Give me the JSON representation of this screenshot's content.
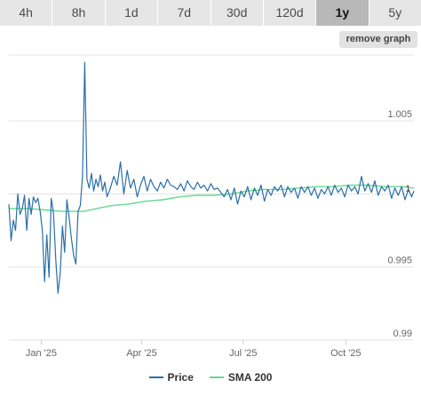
{
  "tabs": [
    {
      "label": "4h",
      "active": false
    },
    {
      "label": "8h",
      "active": false
    },
    {
      "label": "1d",
      "active": false
    },
    {
      "label": "7d",
      "active": false
    },
    {
      "label": "30d",
      "active": false
    },
    {
      "label": "120d",
      "active": false
    },
    {
      "label": "1y",
      "active": true
    },
    {
      "label": "5y",
      "active": false
    }
  ],
  "remove_graph_label": "remove graph",
  "colors": {
    "price": "#2a6fa8",
    "sma": "#66d98e",
    "grid": "#e3e3e3",
    "active_tab": "#b8b8b8",
    "tab": "#e6e6e6"
  },
  "chart_data": {
    "type": "line",
    "title": "",
    "xlabel": "",
    "ylabel": "",
    "x_ticks": [
      "Jan '25",
      "Apr '25",
      "Jul '25",
      "Oct '25"
    ],
    "y_ticks": [
      "0.99",
      "0.995",
      "1.005"
    ],
    "ylim": [
      0.99,
      1.0095
    ],
    "grid": true,
    "y_axis_side": "right",
    "legend_position": "bottom-center",
    "last_value_label": "1",
    "series": [
      {
        "name": "Price",
        "color": "#2a6fa8",
        "x": [
          "2024-12-03",
          "2024-12-05",
          "2024-12-07",
          "2024-12-09",
          "2024-12-11",
          "2024-12-13",
          "2024-12-15",
          "2024-12-17",
          "2024-12-19",
          "2024-12-21",
          "2024-12-23",
          "2024-12-25",
          "2024-12-27",
          "2024-12-29",
          "2024-12-31",
          "2025-01-02",
          "2025-01-04",
          "2025-01-06",
          "2025-01-08",
          "2025-01-10",
          "2025-01-12",
          "2025-01-14",
          "2025-01-16",
          "2025-01-18",
          "2025-01-20",
          "2025-01-22",
          "2025-01-24",
          "2025-01-26",
          "2025-01-28",
          "2025-01-30",
          "2025-02-01",
          "2025-02-03",
          "2025-02-05",
          "2025-02-07",
          "2025-02-09",
          "2025-02-11",
          "2025-02-13",
          "2025-02-15",
          "2025-02-17",
          "2025-02-19",
          "2025-02-21",
          "2025-02-23",
          "2025-02-25",
          "2025-02-27",
          "2025-03-01",
          "2025-03-04",
          "2025-03-07",
          "2025-03-10",
          "2025-03-13",
          "2025-03-16",
          "2025-03-19",
          "2025-03-22",
          "2025-03-25",
          "2025-03-28",
          "2025-03-31",
          "2025-04-03",
          "2025-04-06",
          "2025-04-09",
          "2025-04-12",
          "2025-04-15",
          "2025-04-18",
          "2025-04-21",
          "2025-04-24",
          "2025-04-27",
          "2025-04-30",
          "2025-05-03",
          "2025-05-06",
          "2025-05-09",
          "2025-05-12",
          "2025-05-15",
          "2025-05-18",
          "2025-05-21",
          "2025-05-24",
          "2025-05-27",
          "2025-05-30",
          "2025-06-02",
          "2025-06-05",
          "2025-06-08",
          "2025-06-11",
          "2025-06-14",
          "2025-06-17",
          "2025-06-20",
          "2025-06-23",
          "2025-06-26",
          "2025-06-29",
          "2025-07-02",
          "2025-07-05",
          "2025-07-08",
          "2025-07-11",
          "2025-07-14",
          "2025-07-17",
          "2025-07-20",
          "2025-07-23",
          "2025-07-26",
          "2025-07-29",
          "2025-08-01",
          "2025-08-04",
          "2025-08-07",
          "2025-08-10",
          "2025-08-13",
          "2025-08-16",
          "2025-08-19",
          "2025-08-22",
          "2025-08-25",
          "2025-08-28",
          "2025-08-31",
          "2025-09-03",
          "2025-09-06",
          "2025-09-09",
          "2025-09-12",
          "2025-09-15",
          "2025-09-18",
          "2025-09-21",
          "2025-09-24",
          "2025-09-27",
          "2025-09-30",
          "2025-10-03",
          "2025-10-06",
          "2025-10-09",
          "2025-10-12",
          "2025-10-15",
          "2025-10-18",
          "2025-10-21",
          "2025-10-24",
          "2025-10-27",
          "2025-10-30",
          "2025-11-02",
          "2025-11-05",
          "2025-11-08",
          "2025-11-11",
          "2025-11-14",
          "2025-11-17",
          "2025-11-20",
          "2025-11-23",
          "2025-11-26",
          "2025-11-29",
          "2025-12-01"
        ],
        "values": [
          0.9993,
          0.9968,
          0.9982,
          0.9975,
          1.0,
          0.9986,
          0.999,
          0.9999,
          0.9975,
          0.9997,
          0.9986,
          0.9998,
          0.9994,
          0.9997,
          0.9988,
          0.9975,
          0.994,
          0.9972,
          0.9943,
          0.9997,
          0.9987,
          0.9955,
          0.9932,
          0.9946,
          0.9978,
          0.996,
          0.9996,
          0.9984,
          0.997,
          0.9958,
          0.9952,
          0.9988,
          0.9992,
          1.0012,
          1.009,
          1.001,
          1.0004,
          1.0014,
          1.0002,
          1.001,
          1.0005,
          1.0013,
          1.0002,
          1.0008,
          0.9998,
          1.0004,
          1.0012,
          1.0006,
          1.0022,
          1.0,
          1.0016,
          1.0004,
          1.001,
          0.9998,
          1.0006,
          1.0012,
          1.0002,
          1.001,
          1.0005,
          1.0002,
          1.0008,
          1.0004,
          1.001,
          1.0006,
          1.0005,
          1.0003,
          1.0007,
          1.0002,
          1.0009,
          1.0005,
          1.0003,
          1.0008,
          1.0004,
          1.0006,
          1.0002,
          1.0007,
          1.0003,
          1.0004,
          1.0001,
          0.9998,
          1.0003,
          0.9996,
          1.0004,
          0.9993,
          1.0002,
          0.9998,
          1.0005,
          0.9996,
          1.0004,
          0.9999,
          1.0006,
          0.9995,
          1.0003,
          0.9999,
          1.0005,
          1.0002,
          1.0006,
          0.9998,
          1.0005,
          1.0001,
          1.0004,
          0.9997,
          1.0005,
          1.0001,
          1.0005,
          0.9999,
          1.0004,
          0.9997,
          1.0003,
          1.0,
          1.0005,
          0.9999,
          1.0006,
          1.0001,
          1.0004,
          0.9998,
          1.0006,
          1.0002,
          1.0005,
          1.0,
          1.0012,
          1.0002,
          1.0007,
          1.0001,
          1.0009,
          0.9999,
          1.0005,
          1.0002,
          1.0006,
          0.9997,
          1.0004,
          0.9999,
          1.0005,
          0.9996,
          1.0003,
          0.9998,
          1.0002
        ]
      },
      {
        "name": "SMA 200",
        "color": "#66d98e",
        "x": [
          "2024-12-03",
          "2024-12-20",
          "2025-01-05",
          "2025-01-20",
          "2025-02-08",
          "2025-02-20",
          "2025-03-05",
          "2025-03-20",
          "2025-04-05",
          "2025-04-20",
          "2025-05-05",
          "2025-05-20",
          "2025-06-05",
          "2025-06-20",
          "2025-07-05",
          "2025-07-20",
          "2025-08-05",
          "2025-08-20",
          "2025-09-05",
          "2025-09-20",
          "2025-10-05",
          "2025-10-20",
          "2025-11-05",
          "2025-11-20",
          "2025-12-01"
        ],
        "values": [
          0.999,
          0.999,
          0.9989,
          0.9988,
          0.9988,
          0.999,
          0.9992,
          0.9993,
          0.9995,
          0.9996,
          0.9998,
          0.9999,
          0.9999,
          1.0,
          1.0002,
          1.0003,
          1.0003,
          1.0004,
          1.0005,
          1.0005,
          1.0006,
          1.0006,
          1.0005,
          1.0005,
          1.0004
        ]
      }
    ]
  }
}
